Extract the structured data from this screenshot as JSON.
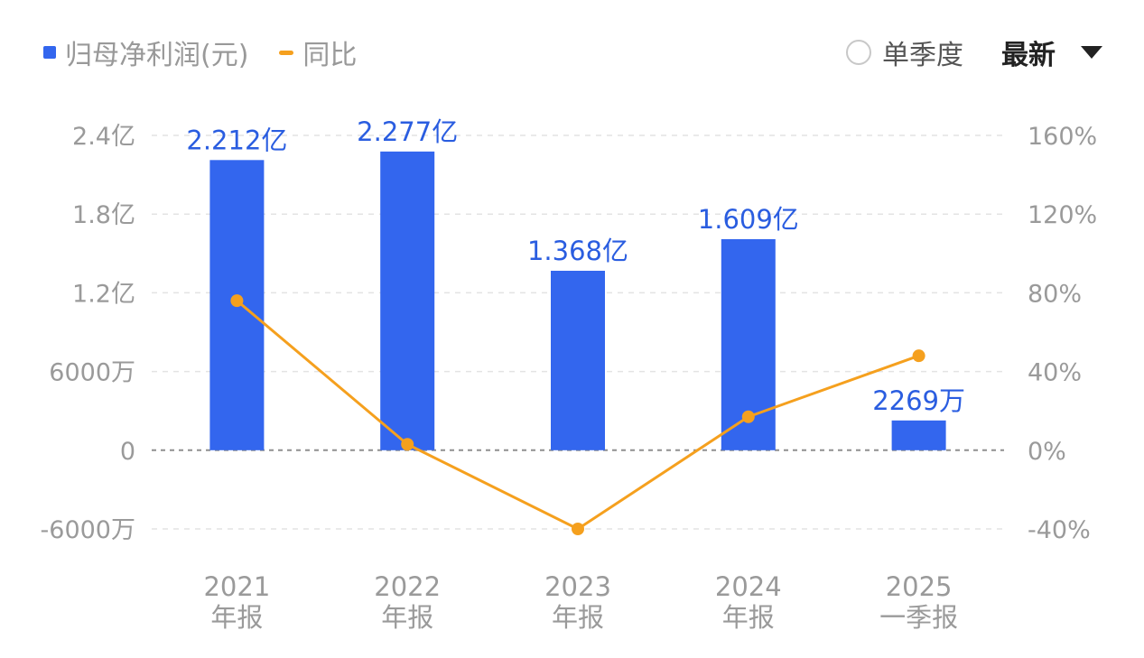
{
  "legend": {
    "bar_label": "归母净利润(元)",
    "line_label": "同比",
    "bar_color": "#3366ee",
    "line_color": "#f5a01e"
  },
  "controls": {
    "radio_label": "单季度",
    "radio_checked": false,
    "sort_label": "最新"
  },
  "chart_data": {
    "type": "bar",
    "categories": [
      [
        "2021",
        "年报"
      ],
      [
        "2022",
        "年报"
      ],
      [
        "2023",
        "年报"
      ],
      [
        "2024",
        "年报"
      ],
      [
        "2025",
        "一季报"
      ]
    ],
    "series": [
      {
        "name": "归母净利润(元)",
        "type": "bar",
        "axis": "left",
        "values": [
          221200000,
          227700000,
          136800000,
          160900000,
          22690000
        ],
        "data_labels": [
          "2.212亿",
          "2.277亿",
          "1.368亿",
          "1.609亿",
          "2269万"
        ]
      },
      {
        "name": "同比",
        "type": "line",
        "axis": "right",
        "values": [
          76,
          3,
          -40,
          17,
          48
        ],
        "unit": "%"
      }
    ],
    "left_axis": {
      "ylim": [
        -60000000,
        240000000
      ],
      "ticks": [
        240000000,
        180000000,
        120000000,
        60000000,
        0,
        -60000000
      ],
      "tick_labels": [
        "2.4亿",
        "1.8亿",
        "1.2亿",
        "6000万",
        "0",
        "-6000万"
      ]
    },
    "right_axis": {
      "ylim": [
        -40,
        160
      ],
      "tick_labels": [
        "160%",
        "120%",
        "80%",
        "40%",
        "0%",
        "-40%"
      ]
    },
    "grid": true
  }
}
